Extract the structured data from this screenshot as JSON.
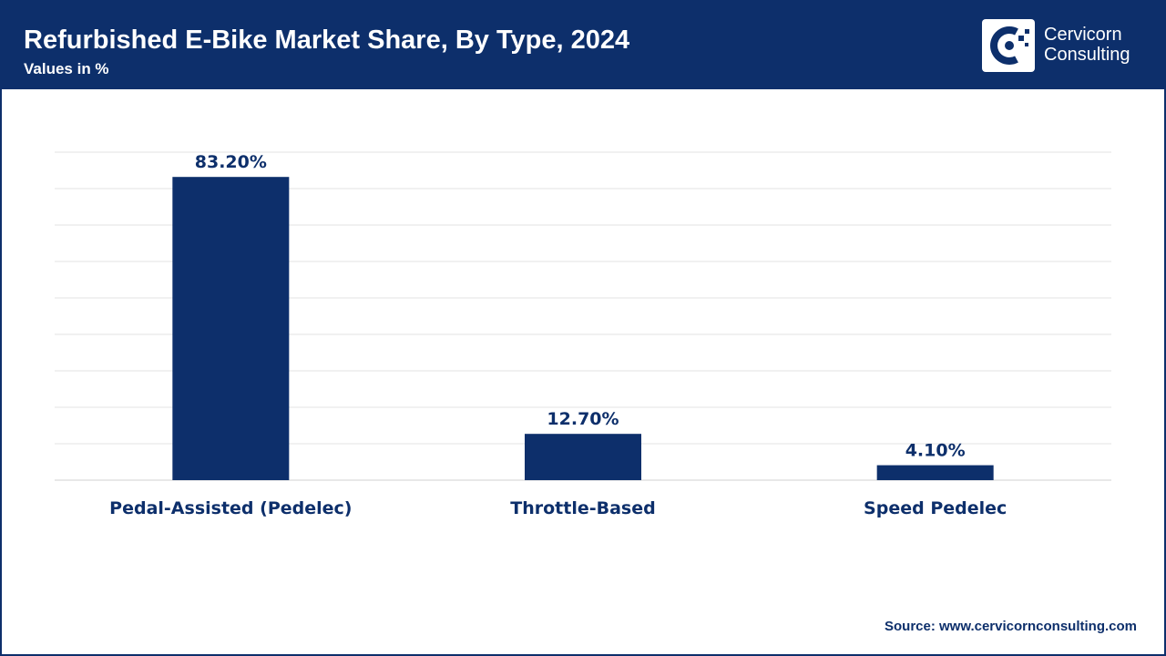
{
  "header": {
    "title": "Refurbished E-Bike Market Share, By Type, 2024",
    "subtitle": "Values in %"
  },
  "logo": {
    "line1": "Cervicorn",
    "line2": "Consulting",
    "icon": "cervicorn-logo-icon"
  },
  "colors": {
    "header_bg": "#0d2f6b",
    "bar": "#0d2f6b",
    "grid": "#e3e3e3",
    "text": "#0d2f6b"
  },
  "chart_data": {
    "type": "bar",
    "categories": [
      "Pedal-Assisted (Pedelec)",
      "Throttle-Based",
      "Speed Pedelec"
    ],
    "values": [
      83.2,
      12.7,
      4.1
    ],
    "data_labels": [
      "83.20%",
      "12.70%",
      "4.10%"
    ],
    "title": "Refurbished E-Bike Market Share, By Type, 2024",
    "subtitle": "Values in %",
    "xlabel": "",
    "ylabel": "",
    "ylim": [
      0,
      90
    ],
    "grid": true,
    "legend": "none"
  },
  "source": "Source: www.cervicornconsulting.com"
}
